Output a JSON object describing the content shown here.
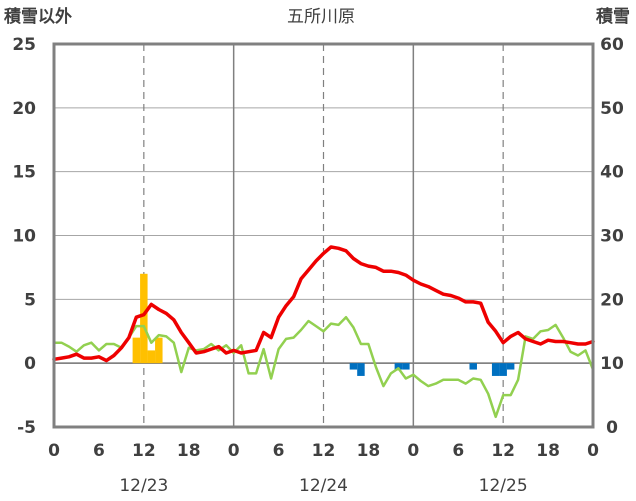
{
  "chart_data": {
    "type": "line",
    "title": "五所川原",
    "left_axis_label": "積雪以外",
    "right_axis_label": "積雪",
    "left_ylim": [
      -5,
      25
    ],
    "left_yticks": [
      "25",
      "20",
      "15",
      "10",
      "5",
      "0",
      "-5"
    ],
    "right_ylim": [
      0,
      60
    ],
    "right_yticks": [
      "60",
      "50",
      "40",
      "30",
      "20",
      "10",
      "0"
    ],
    "x_hours": [
      0,
      72
    ],
    "x_tick_labels": [
      "0",
      "6",
      "12",
      "18",
      "0",
      "6",
      "12",
      "18",
      "0",
      "6",
      "12",
      "18",
      "0"
    ],
    "date_labels": [
      {
        "text": "12/23",
        "hour": 12
      },
      {
        "text": "12/24",
        "hour": 36
      },
      {
        "text": "12/25",
        "hour": 60
      }
    ],
    "colors": {
      "temperature": "#ee0000",
      "wind": "#92d050",
      "precip_positive": "#ffc000",
      "precip_negative": "#0070c0",
      "snow_depth": "#7030a0",
      "frame": "#808080",
      "text": "#404040"
    },
    "series": [
      {
        "key": "temperature",
        "axis": "left",
        "x": [
          0,
          1,
          2,
          3,
          4,
          5,
          6,
          7,
          8,
          9,
          10,
          11,
          12,
          13,
          14,
          15,
          16,
          17,
          18,
          19,
          20,
          21,
          22,
          23,
          24,
          25,
          26,
          27,
          28,
          29,
          30,
          31,
          32,
          33,
          34,
          35,
          36,
          37,
          38,
          39,
          40,
          41,
          42,
          43,
          44,
          45,
          46,
          47,
          48,
          49,
          50,
          51,
          52,
          53,
          54,
          55,
          56,
          57,
          58,
          59,
          60,
          61,
          62,
          63,
          64,
          65,
          66,
          67,
          68,
          69,
          70,
          71,
          72
        ],
        "values": [
          0.3,
          0.4,
          0.5,
          0.7,
          0.4,
          0.4,
          0.5,
          0.2,
          0.6,
          1.2,
          2.0,
          3.6,
          3.8,
          4.6,
          4.2,
          3.9,
          3.4,
          2.4,
          1.6,
          0.8,
          0.9,
          1.1,
          1.3,
          0.8,
          1.0,
          0.8,
          0.9,
          1.0,
          2.4,
          2.0,
          3.6,
          4.5,
          5.2,
          6.6,
          7.3,
          8.0,
          8.6,
          9.1,
          9.0,
          8.8,
          8.2,
          7.8,
          7.6,
          7.5,
          7.2,
          7.2,
          7.1,
          6.9,
          6.5,
          6.2,
          6.0,
          5.7,
          5.4,
          5.3,
          5.1,
          4.8,
          4.8,
          4.7,
          3.2,
          2.5,
          1.6,
          2.1,
          2.4,
          1.9,
          1.7,
          1.5,
          1.8,
          1.7,
          1.7,
          1.6,
          1.5,
          1.5,
          1.7
        ]
      },
      {
        "key": "wind",
        "axis": "left",
        "x": [
          0,
          1,
          2,
          3,
          4,
          5,
          6,
          7,
          8,
          9,
          10,
          11,
          12,
          13,
          14,
          15,
          16,
          17,
          18,
          19,
          20,
          21,
          22,
          23,
          24,
          25,
          26,
          27,
          28,
          29,
          30,
          31,
          32,
          33,
          34,
          35,
          36,
          37,
          38,
          39,
          40,
          41,
          42,
          43,
          44,
          45,
          46,
          47,
          48,
          49,
          50,
          51,
          52,
          53,
          54,
          55,
          56,
          57,
          58,
          59,
          60,
          61,
          62,
          63,
          64,
          65,
          66,
          67,
          68,
          69,
          70,
          71,
          72
        ],
        "values": [
          1.6,
          1.6,
          1.3,
          0.9,
          1.4,
          1.6,
          1.0,
          1.5,
          1.5,
          1.2,
          2.0,
          2.9,
          2.9,
          1.6,
          2.2,
          2.1,
          1.6,
          -0.7,
          1.2,
          1.0,
          1.1,
          1.5,
          1.0,
          1.4,
          0.8,
          1.4,
          -0.8,
          -0.8,
          1.1,
          -1.2,
          1.1,
          1.9,
          2.0,
          2.6,
          3.3,
          2.9,
          2.5,
          3.1,
          3.0,
          3.6,
          2.8,
          1.5,
          1.5,
          -0.3,
          -1.8,
          -0.8,
          -0.4,
          -1.2,
          -0.9,
          -1.4,
          -1.8,
          -1.6,
          -1.3,
          -1.3,
          -1.3,
          -1.6,
          -1.2,
          -1.3,
          -2.4,
          -4.2,
          -2.5,
          -2.5,
          -1.3,
          2.1,
          1.9,
          2.5,
          2.6,
          3.0,
          2.0,
          0.9,
          0.6,
          1.0,
          -0.5
        ]
      },
      {
        "key": "snow_depth",
        "axis": "right",
        "x": [
          0,
          72
        ],
        "values": [
          0,
          0
        ]
      }
    ],
    "bars": [
      {
        "hour": 11,
        "value": 2.0,
        "color_key": "precip_positive"
      },
      {
        "hour": 12,
        "value": 7.0,
        "color_key": "precip_positive"
      },
      {
        "hour": 13,
        "value": 1.0,
        "color_key": "precip_positive"
      },
      {
        "hour": 14,
        "value": 2.0,
        "color_key": "precip_positive"
      },
      {
        "hour": 40,
        "value": -0.5,
        "color_key": "precip_negative"
      },
      {
        "hour": 41,
        "value": -1.0,
        "color_key": "precip_negative"
      },
      {
        "hour": 46,
        "value": -0.5,
        "color_key": "precip_negative"
      },
      {
        "hour": 47,
        "value": -0.5,
        "color_key": "precip_negative"
      },
      {
        "hour": 56,
        "value": -0.5,
        "color_key": "precip_negative"
      },
      {
        "hour": 59,
        "value": -1.0,
        "color_key": "precip_negative"
      },
      {
        "hour": 60,
        "value": -1.0,
        "color_key": "precip_negative"
      },
      {
        "hour": 61,
        "value": -0.5,
        "color_key": "precip_negative"
      }
    ]
  }
}
